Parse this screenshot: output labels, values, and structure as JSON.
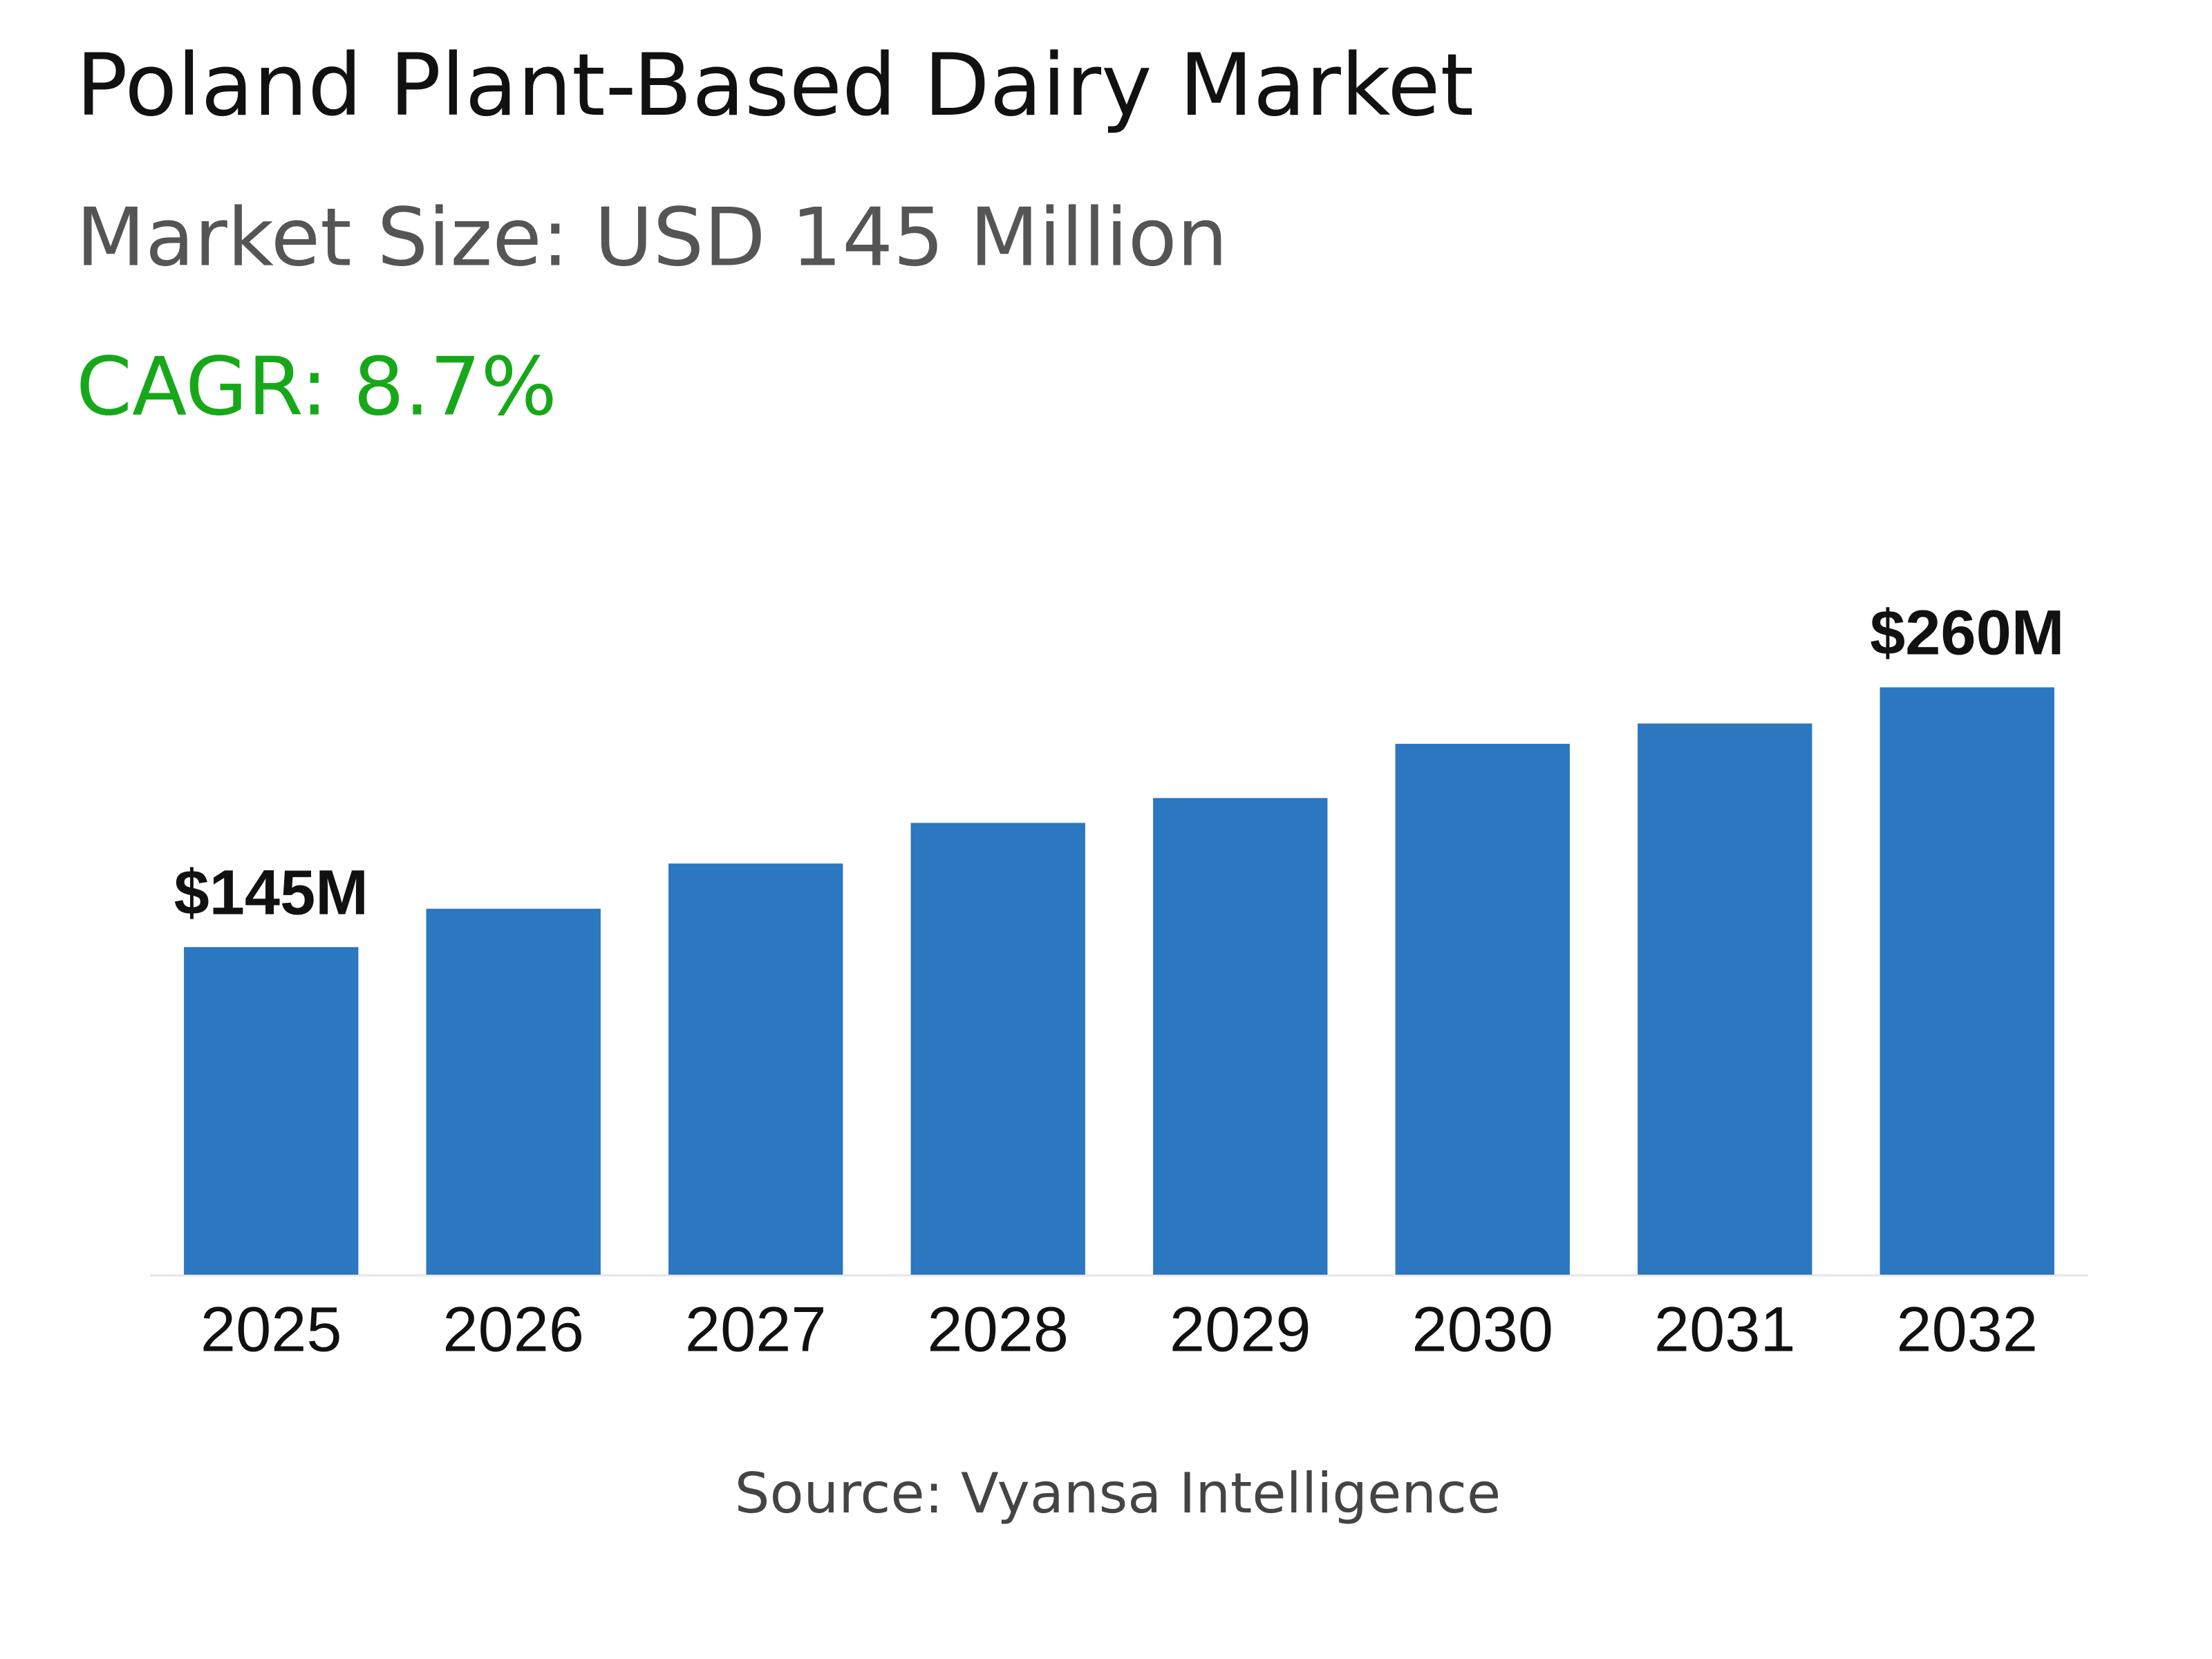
{
  "chart_data": {
    "type": "bar",
    "title": "Poland Plant-Based Dairy Market",
    "subtitle": "Market Size: USD 145 Million",
    "annotation": "CAGR: 8.7%",
    "source": "Source: Vyansa Intelligence",
    "categories": [
      "2025",
      "2026",
      "2027",
      "2028",
      "2029",
      "2030",
      "2031",
      "2032"
    ],
    "values": [
      145,
      162,
      182,
      200,
      211,
      235,
      244,
      260
    ],
    "value_labels": [
      "$145M",
      null,
      null,
      null,
      null,
      null,
      null,
      "$260M"
    ],
    "color": "#2b77c0",
    "ylim": [
      0,
      280
    ],
    "grid": false
  }
}
